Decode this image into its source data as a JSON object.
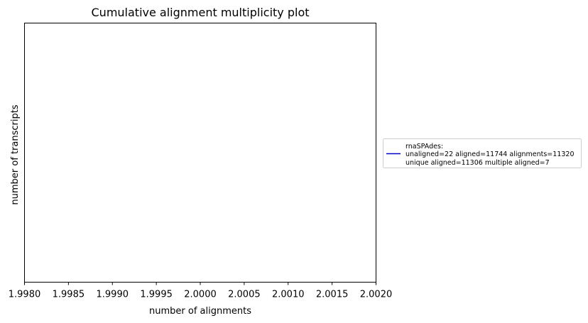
{
  "chart_data": {
    "type": "line",
    "title": "Cumulative alignment multiplicity plot",
    "xlabel": "number of alignments",
    "ylabel": "number of transcripts",
    "xlim": [
      1.998,
      2.002
    ],
    "x_ticks": [
      "1.9980",
      "1.9985",
      "1.9990",
      "1.9995",
      "2.0000",
      "2.0005",
      "2.0010",
      "2.0015",
      "2.0020"
    ],
    "y_ticks": [],
    "grid": false,
    "legend_position": "right",
    "series": [
      {
        "name": "rnaSPAdes:",
        "legend_lines": [
          "rnaSPAdes:",
          "unaligned=22 aligned=11744 alignments=11320",
          "unique aligned=11306 multiple aligned=7"
        ],
        "color": "#0000cd",
        "x": [],
        "y": []
      }
    ]
  }
}
